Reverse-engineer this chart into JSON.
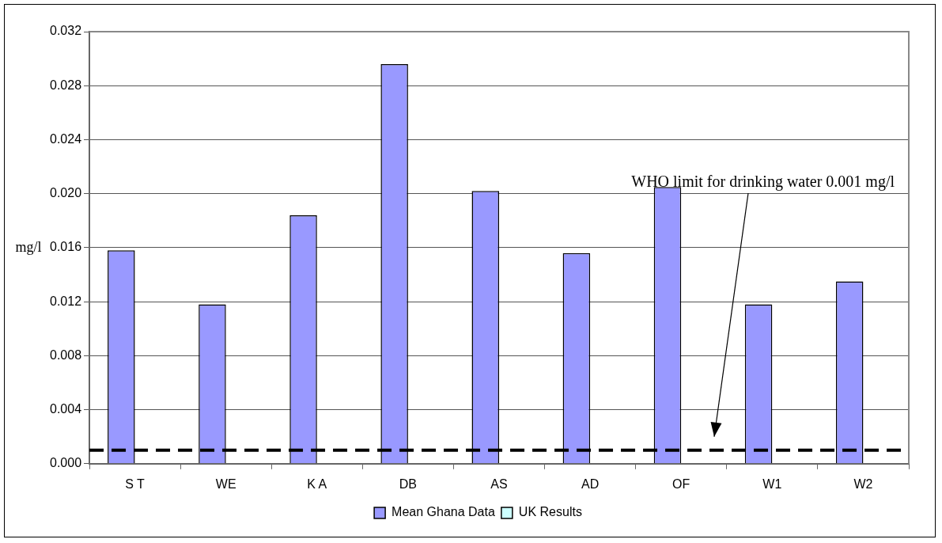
{
  "chart_data": {
    "type": "bar",
    "ylabel": "mg/l",
    "categories": [
      "S T",
      "WE",
      "K A",
      "DB",
      "AS",
      "AD",
      "OF",
      "W1",
      "W2"
    ],
    "series": [
      {
        "name": "Mean Ghana Data",
        "color": "#9999ff",
        "values": [
          0.0158,
          0.0118,
          0.0184,
          0.0296,
          0.0202,
          0.0156,
          0.0205,
          0.0118,
          0.0135
        ]
      },
      {
        "name": "UK Results",
        "color": "#ccffff",
        "values": [
          null,
          null,
          null,
          null,
          null,
          null,
          null,
          null,
          null
        ]
      }
    ],
    "ylim": [
      0,
      0.032
    ],
    "yticks": [
      {
        "value": 0,
        "label": "0.000"
      },
      {
        "value": 0.004,
        "label": "0.004"
      },
      {
        "value": 0.008,
        "label": "0.008"
      },
      {
        "value": 0.012,
        "label": "0.012"
      },
      {
        "value": 0.016,
        "label": "0.016"
      },
      {
        "value": 0.02,
        "label": "0.020"
      },
      {
        "value": 0.024,
        "label": "0.024"
      },
      {
        "value": 0.028,
        "label": "0.028"
      },
      {
        "value": 0.032,
        "label": "0.032"
      }
    ],
    "ref_lines": [
      {
        "axis": "y",
        "value": 0.001,
        "color": "#000000",
        "line_style": "dashed"
      }
    ],
    "annotations": [
      "WHO limit for drinking water 0.001 mg/l"
    ],
    "grid": "y",
    "legend": "bottom"
  }
}
